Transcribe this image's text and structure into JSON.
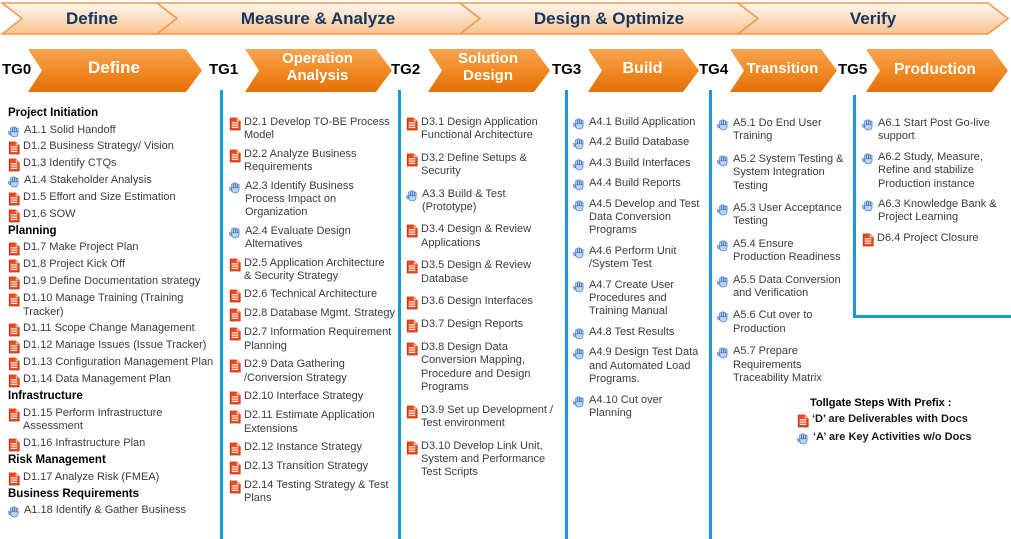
{
  "banner": {
    "phases": [
      {
        "label": "Define"
      },
      {
        "label": "Measure & Analyze"
      },
      {
        "label": "Design &  Optimize"
      },
      {
        "label": "Verify"
      }
    ]
  },
  "tollgates": [
    {
      "gate": "TG0",
      "phase": "Define"
    },
    {
      "gate": "TG1",
      "phase": "Operation Analysis"
    },
    {
      "gate": "TG2",
      "phase": "Solution Design"
    },
    {
      "gate": "TG3",
      "phase": "Build"
    },
    {
      "gate": "TG4",
      "phase": "Transition"
    },
    {
      "gate": "TG5",
      "phase": "Production"
    }
  ],
  "columns": [
    {
      "items": [
        {
          "header": "Project Initiation"
        },
        {
          "icon": "hand",
          "text": "A1.1 Solid Handoff"
        },
        {
          "icon": "doc",
          "text": "D1.2 Business Strategy/ Vision"
        },
        {
          "icon": "doc",
          "text": "D1.3 Identify CTQs"
        },
        {
          "icon": "hand",
          "text": "A1.4 Stakeholder Analysis"
        },
        {
          "icon": "doc",
          "text": "D1.5 Effort and Size Estimation"
        },
        {
          "icon": "doc",
          "text": "D1.6 SOW"
        },
        {
          "header": "Planning"
        },
        {
          "icon": "doc",
          "text": "D1.7 Make Project Plan"
        },
        {
          "icon": "doc",
          "text": "D1.8 Project Kick Off"
        },
        {
          "icon": "doc",
          "text": "D1.9 Define Documentation strategy"
        },
        {
          "icon": "doc",
          "text": "D1.10 Manage Training (Training Tracker)"
        },
        {
          "icon": "doc",
          "text": "D1.11 Scope Change Management"
        },
        {
          "icon": "doc",
          "text": "D1.12 Manage Issues (Issue Tracker)"
        },
        {
          "icon": "doc",
          "text": "D1.13 Configuration Management Plan"
        },
        {
          "icon": "doc",
          "text": "D1.14 Data Management Plan"
        },
        {
          "header": "Infrastructure"
        },
        {
          "icon": "doc",
          "text": "D1.15 Perform Infrastructure Assessment"
        },
        {
          "icon": "doc",
          "text": "D1.16 Infrastructure Plan"
        },
        {
          "header": "Risk Management"
        },
        {
          "icon": "doc",
          "text": "D1.17 Analyze Risk (FMEA)"
        },
        {
          "header": "Business Requirements"
        },
        {
          "icon": "hand",
          "text": "A1.18 Identify & Gather Business"
        }
      ]
    },
    {
      "items": [
        {
          "icon": "doc",
          "text": "D2.1 Develop TO-BE Process Model"
        },
        {
          "icon": "doc",
          "text": "D2.2 Analyze Business Requirements"
        },
        {
          "icon": "hand",
          "text": "A2.3 Identify Business Process Impact on Organization"
        },
        {
          "icon": "hand",
          "text": "A2.4 Evaluate Design Alternatives"
        },
        {
          "icon": "doc",
          "text": "D2.5 Application Architecture & Security Strategy"
        },
        {
          "icon": "doc",
          "text": "D2.6 Technical Architecture"
        },
        {
          "icon": "doc",
          "text": "D2.8 Database Mgmt. Strategy"
        },
        {
          "icon": "doc",
          "text": "D2.7 Information Requirement Planning"
        },
        {
          "icon": "doc",
          "text": "D2.9 Data Gathering /Conversion Strategy"
        },
        {
          "icon": "doc",
          "text": "D2.10 Interface Strategy"
        },
        {
          "icon": "doc",
          "text": "D2.11 Estimate Application Extensions"
        },
        {
          "icon": "doc",
          "text": "D2.12 Instance Strategy"
        },
        {
          "icon": "doc",
          "text": "D2.13 Transition Strategy"
        },
        {
          "icon": "doc",
          "text": "D2.14 Testing Strategy & Test Plans"
        }
      ]
    },
    {
      "items": [
        {
          "icon": "doc",
          "text": "D3.1 Design Application Functional Architecture"
        },
        {
          "icon": "doc",
          "text": "D3.2 Define Setups & Security"
        },
        {
          "icon": "hand",
          "text": "A3.3 Build & Test (Prototype)"
        },
        {
          "icon": "doc",
          "text": "D3.4 Design & Review Applications"
        },
        {
          "icon": "doc",
          "text": "D3.5 Design & Review Database"
        },
        {
          "icon": "doc",
          "text": "D3.6 Design Interfaces"
        },
        {
          "icon": "doc",
          "text": "D3.7 Design Reports"
        },
        {
          "icon": "doc",
          "text": "D3.8 Design Data Conversion Mapping, Procedure and Design Programs"
        },
        {
          "icon": "doc",
          "text": "D3.9 Set up Development / Test environment"
        },
        {
          "icon": "doc",
          "text": "D3.10 Develop Link Unit, System and Performance Test Scripts"
        }
      ]
    },
    {
      "items": [
        {
          "icon": "hand",
          "text": "A4.1 Build Application"
        },
        {
          "icon": "hand",
          "text": "A4.2 Build Database"
        },
        {
          "icon": "hand",
          "text": "A4.3 Build Interfaces"
        },
        {
          "icon": "hand",
          "text": "A4.4 Build Reports"
        },
        {
          "icon": "hand",
          "text": "A4.5 Develop and Test Data Conversion Programs"
        },
        {
          "icon": "hand",
          "text": "A4.6 Perform Unit /System Test"
        },
        {
          "icon": "hand",
          "text": "A4.7 Create User Procedures and Training Manual"
        },
        {
          "icon": "hand",
          "text": "A4.8 Test Results"
        },
        {
          "icon": "hand",
          "text": "A4.9 Design Test Data and Automated Load Programs."
        },
        {
          "icon": "hand",
          "text": "A4.10 Cut over Planning"
        }
      ]
    },
    {
      "items": [
        {
          "icon": "hand",
          "text": "A5.1 Do End User Training"
        },
        {
          "icon": "hand",
          "text": "A5.2 System Testing  & System Integration Testing"
        },
        {
          "icon": "hand",
          "text": "A5.3 User Acceptance Testing"
        },
        {
          "icon": "hand",
          "text": "A5.4 Ensure Production Readiness"
        },
        {
          "icon": "hand",
          "text": "A5.5 Data Conversion and Verification"
        },
        {
          "icon": "hand",
          "text": "A5.6 Cut over to Production"
        },
        {
          "icon": "hand",
          "text": "A5.7 Prepare Requirements Traceability Matrix"
        }
      ]
    },
    {
      "items": [
        {
          "icon": "hand",
          "text": "A6.1 Start Post Go-live support"
        },
        {
          "icon": "hand",
          "text": "A6.2 Study, Measure, Refine and stabilize Production instance"
        },
        {
          "icon": "hand",
          "text": "A6.3 Knowledge Bank & Project Learning"
        },
        {
          "icon": "doc",
          "text": "D6.4 Project Closure"
        }
      ]
    }
  ],
  "legend": {
    "title": "Tollgate Steps With Prefix :",
    "doc_note": "‘D’ are Deliverables with Docs",
    "activity_note": "‘A’ are Key Activities w/o Docs"
  },
  "colors": {
    "arrow_orange_top": "#F9A452",
    "arrow_orange_bottom": "#E36F07",
    "banner_peach_top": "#FEF7F0",
    "banner_peach_bottom": "#F9C490",
    "banner_border": "#F79646",
    "banner_text": "#17365D",
    "divider_blue": "#1B99D5",
    "doc_icon_red": "#EE4B1E",
    "hand_icon_blue": "#B9D5F2"
  }
}
